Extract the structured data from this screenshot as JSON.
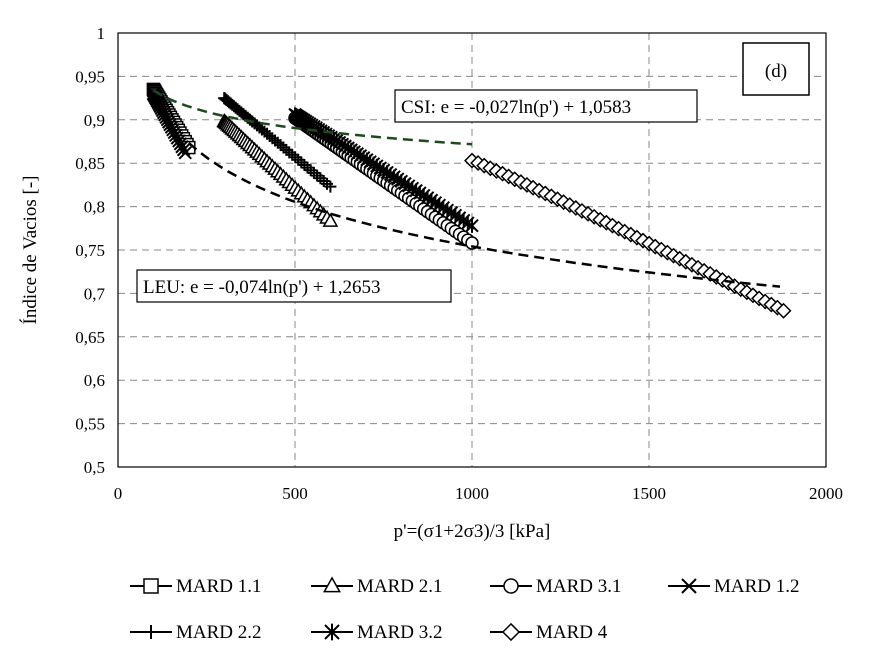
{
  "chart_data": {
    "type": "scatter",
    "panel_label": "(d)",
    "xlabel": "p'=(σ1+2σ3)/3 [kPa]",
    "ylabel": "Índice de Vacios [-]",
    "xlim": [
      0,
      2000
    ],
    "ylim": [
      0.5,
      1
    ],
    "x_ticks": [
      0,
      500,
      1000,
      1500,
      2000
    ],
    "x_tick_labels": [
      "0",
      "500",
      "1000",
      "1500",
      "2000"
    ],
    "y_ticks": [
      0.5,
      0.55,
      0.6,
      0.65,
      0.7,
      0.75,
      0.8,
      0.85,
      0.9,
      0.95,
      1
    ],
    "y_tick_labels": [
      "0,5",
      "0,55",
      "0,6",
      "0,65",
      "0,7",
      "0,75",
      "0,8",
      "0,85",
      "0,9",
      "0,95",
      "1"
    ],
    "grid": true,
    "legend_position": "bottom",
    "series": [
      {
        "name": "MARD 1.1",
        "marker": "square",
        "x_start": 100,
        "x_end": 200,
        "y_start": 0.935,
        "y_end": 0.868,
        "n": 28
      },
      {
        "name": "MARD 2.1",
        "marker": "triangle",
        "x_start": 300,
        "x_end": 600,
        "y_start": 0.898,
        "y_end": 0.783,
        "n": 45
      },
      {
        "name": "MARD 3.1",
        "marker": "circle",
        "x_start": 500,
        "x_end": 1000,
        "y_start": 0.902,
        "y_end": 0.758,
        "n": 60
      },
      {
        "name": "MARD 1.2",
        "marker": "x",
        "x_start": 100,
        "x_end": 190,
        "y_start": 0.93,
        "y_end": 0.862,
        "n": 28
      },
      {
        "name": "MARD 2.2",
        "marker": "plus",
        "x_start": 300,
        "x_end": 600,
        "y_start": 0.925,
        "y_end": 0.823,
        "n": 45
      },
      {
        "name": "MARD 3.2",
        "marker": "star",
        "x_start": 500,
        "x_end": 1000,
        "y_start": 0.906,
        "y_end": 0.778,
        "n": 60
      },
      {
        "name": "MARD 4",
        "marker": "diamond",
        "x_start": 1000,
        "x_end": 1880,
        "y_start": 0.853,
        "y_end": 0.68,
        "n": 52
      }
    ],
    "trend_lines": [
      {
        "label": "CSI: e = -0,027ln(p') + 1,0583",
        "color": "#1f4a1f",
        "slope": -0.027,
        "intercept": 1.0583,
        "x_range": [
          100,
          1000
        ]
      },
      {
        "label": "LEU: e = -0,074ln(p') + 1,2653",
        "color": "#000000",
        "slope": -0.074,
        "intercept": 1.2653,
        "x_range": [
          200,
          1870
        ]
      }
    ]
  }
}
